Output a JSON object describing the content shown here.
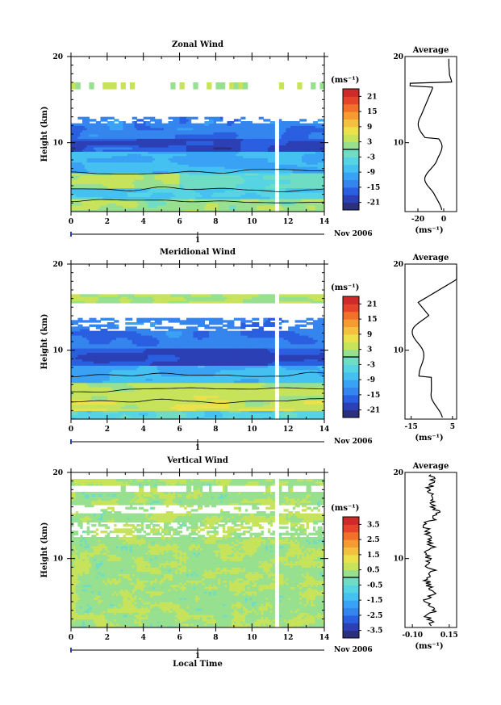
{
  "chart_data": [
    {
      "type": "heatmap",
      "title": "Zonal Wind",
      "ylabel": "Height (km)",
      "xlabel": "",
      "xlim": [
        0,
        14
      ],
      "ylim": [
        2,
        20
      ],
      "x_ticks": [
        "0",
        "2",
        "4",
        "6",
        "8",
        "10",
        "12",
        "14"
      ],
      "y_ticks": [
        "10",
        "20"
      ],
      "date_label": "Nov 2006",
      "day_label": "1",
      "colorbar": {
        "unit": "(ms⁻¹)",
        "ticks": [
          "21",
          "15",
          "9",
          "3",
          "-3",
          "-9",
          "-15",
          "-21"
        ],
        "range": [
          -24,
          24
        ]
      },
      "average": {
        "title": "Average",
        "y_ticks": [
          "10",
          "20"
        ],
        "x_ticks": [
          "-20",
          "0"
        ],
        "unit": "(ms⁻¹)",
        "xlim": [
          -30,
          10
        ]
      }
    },
    {
      "type": "heatmap",
      "title": "Meridional Wind",
      "ylabel": "Height (km)",
      "xlabel": "",
      "xlim": [
        0,
        14
      ],
      "ylim": [
        2,
        20
      ],
      "x_ticks": [
        "0",
        "2",
        "4",
        "6",
        "8",
        "10",
        "12",
        "14"
      ],
      "y_ticks": [
        "10",
        "20"
      ],
      "date_label": "Nov 2006",
      "day_label": "1",
      "colorbar": {
        "unit": "(ms⁻¹)",
        "ticks": [
          "21",
          "15",
          "9",
          "3",
          "-3",
          "-9",
          "-15",
          "-21"
        ],
        "range": [
          -24,
          24
        ]
      },
      "average": {
        "title": "Average",
        "y_ticks": [
          "10",
          "20"
        ],
        "x_ticks": [
          "-15",
          "5"
        ],
        "unit": "(ms⁻¹)",
        "xlim": [
          -18,
          7
        ]
      }
    },
    {
      "type": "heatmap",
      "title": "Vertical Wind",
      "ylabel": "Height (km)",
      "xlabel": "Local Time",
      "xlim": [
        0,
        14
      ],
      "ylim": [
        2,
        20
      ],
      "x_ticks": [
        "0",
        "2",
        "4",
        "6",
        "8",
        "10",
        "12",
        "14"
      ],
      "y_ticks": [
        "10",
        "20"
      ],
      "date_label": "Nov 2006",
      "day_label": "1",
      "colorbar": {
        "unit": "(ms⁻¹)",
        "ticks": [
          "3.5",
          "2.5",
          "1.5",
          "0.5",
          "-0.5",
          "-1.5",
          "-2.5",
          "-3.5"
        ],
        "range": [
          -4,
          4
        ]
      },
      "average": {
        "title": "Average",
        "y_ticks": [
          "10",
          "20"
        ],
        "x_ticks": [
          "-0.10",
          "0.15"
        ],
        "unit": "(ms⁻¹)",
        "xlim": [
          -0.15,
          0.2
        ]
      }
    }
  ]
}
